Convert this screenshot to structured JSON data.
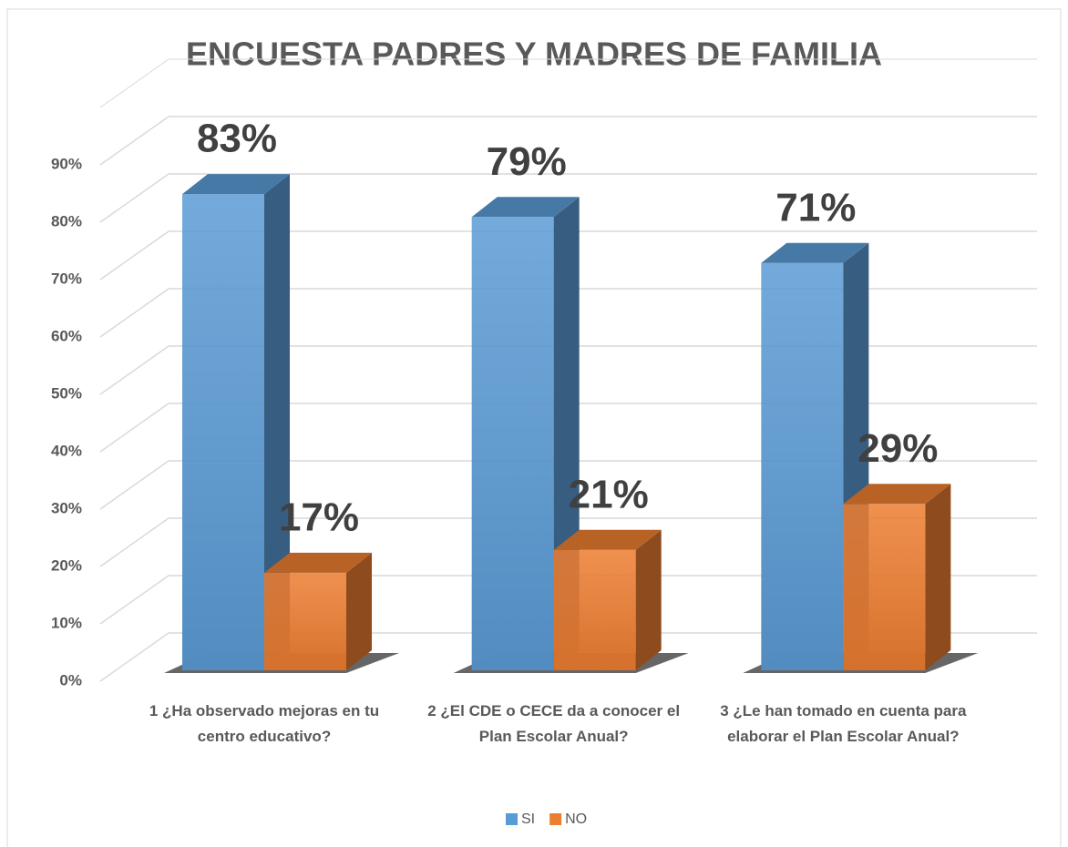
{
  "chart_data": {
    "type": "bar3d",
    "title": "ENCUESTA PADRES Y MADRES DE FAMILIA",
    "categories": [
      "1 ¿Ha observado mejoras en tu centro educativo?",
      "2 ¿El CDE o CECE da a conocer el Plan Escolar Anual?",
      "3 ¿Le han tomado en cuenta para elaborar el Plan Escolar Anual?"
    ],
    "series": [
      {
        "name": "SI",
        "color": "#5b9bd5",
        "values": [
          83,
          79,
          71
        ],
        "value_labels": [
          "83%",
          "79%",
          "71%"
        ]
      },
      {
        "name": "NO",
        "color": "#ed7d31",
        "values": [
          17,
          21,
          29
        ],
        "value_labels": [
          "17%",
          "21%",
          "29%"
        ]
      }
    ],
    "ylim": [
      0,
      100
    ],
    "yticks": [
      {
        "value": 0,
        "label": "0%"
      },
      {
        "value": 10,
        "label": "10%"
      },
      {
        "value": 20,
        "label": "20%"
      },
      {
        "value": 30,
        "label": "30%"
      },
      {
        "value": 40,
        "label": "40%"
      },
      {
        "value": 50,
        "label": "50%"
      },
      {
        "value": 60,
        "label": "60%"
      },
      {
        "value": 70,
        "label": "70%"
      },
      {
        "value": 80,
        "label": "80%"
      },
      {
        "value": 90,
        "label": "90%"
      }
    ],
    "grid": true,
    "legend": "bottom"
  }
}
